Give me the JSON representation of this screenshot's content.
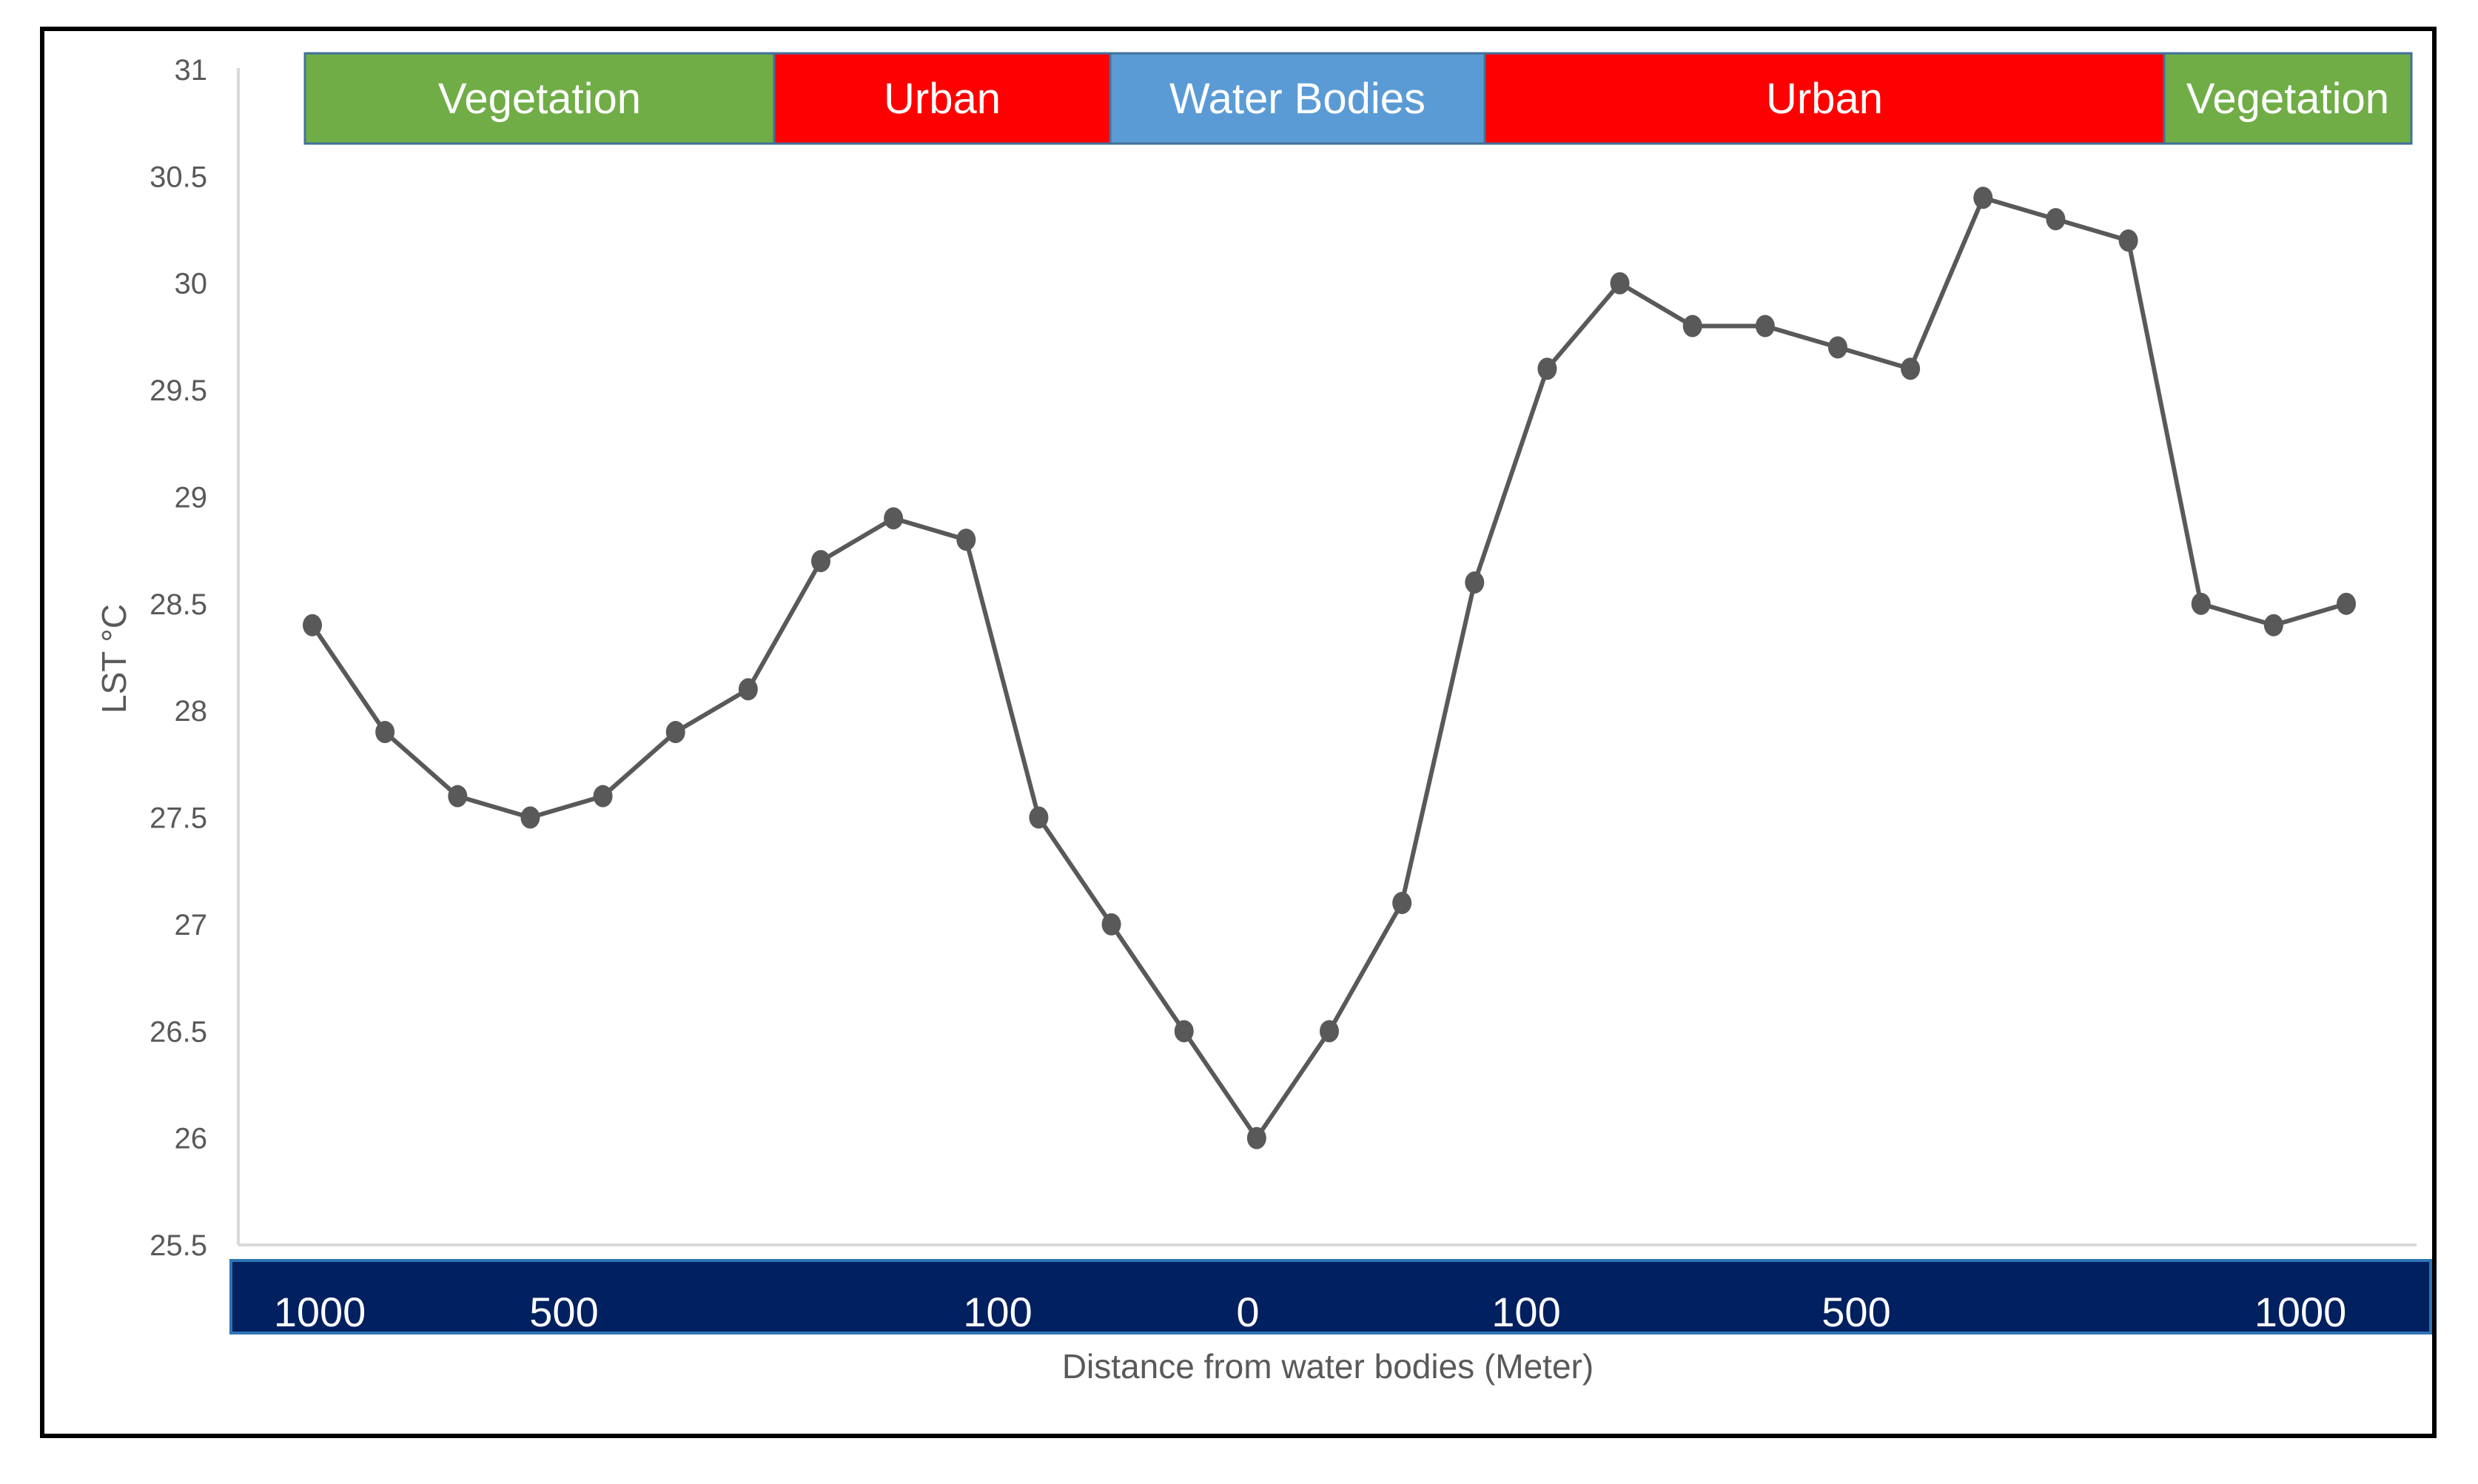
{
  "chart_data": {
    "type": "line",
    "title": "",
    "xlabel": "Distance from water bodies  (Meter)",
    "ylabel": "LST °C",
    "ylim": [
      25.5,
      31
    ],
    "yticks": [
      "25.5",
      "26",
      "26.5",
      "27",
      "27.5",
      "28",
      "28.5",
      "29",
      "29.5",
      "30",
      "30.5",
      "31"
    ],
    "grid": false,
    "series": [
      {
        "values": [
          28.4,
          27.9,
          27.6,
          27.5,
          27.6,
          27.9,
          28.1,
          28.7,
          28.9,
          28.8,
          27.5,
          27.0,
          26.5,
          26.0,
          26.5,
          27.1,
          28.6,
          29.6,
          30.0,
          29.8,
          29.8,
          29.7,
          29.6,
          30.4,
          30.3,
          30.2,
          28.5,
          28.4,
          28.5
        ]
      }
    ],
    "landcover_bands": [
      {
        "label": "Vegetation",
        "color": "#70AD47"
      },
      {
        "label": "Urban",
        "color": "#FF0000"
      },
      {
        "label": "Water Bodies",
        "color": "#5B9BD5"
      },
      {
        "label": "Urban",
        "color": "#FF0000"
      },
      {
        "label": "Vegetation",
        "color": "#70AD47"
      }
    ],
    "distance_labels": [
      "1000",
      "500",
      "100",
      "0",
      "100",
      "500",
      "1000"
    ],
    "distance_bar_color": "#002060",
    "line_color": "#595959"
  }
}
